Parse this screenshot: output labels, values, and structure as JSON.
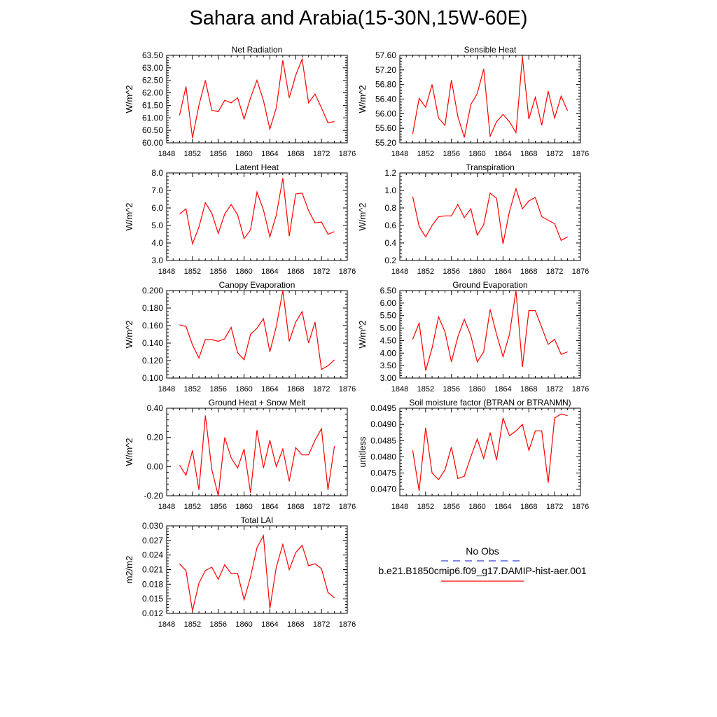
{
  "title": "Sahara and Arabia(15-30N,15W-60E)",
  "colors": {
    "series": "#ff0000",
    "obs": "#3b3bd6",
    "axis": "#000000"
  },
  "legend": {
    "obs_label": "No Obs",
    "model_label": "b.e21.B1850cmip6.f09_g17.DAMIP-hist-aer.001"
  },
  "chart_data": [
    {
      "type": "line",
      "title": "Net Radiation",
      "ylabel": "W/m^2",
      "xlim": [
        1848,
        1876
      ],
      "xticks": [
        "1848",
        "1852",
        "1856",
        "1860",
        "1864",
        "1868",
        "1872",
        "1876"
      ],
      "ylim": [
        60.0,
        63.5
      ],
      "yticks": [
        "60.00",
        "60.50",
        "61.00",
        "61.50",
        "62.00",
        "62.50",
        "63.00",
        "63.50"
      ],
      "x": [
        1850,
        1851,
        1852,
        1853,
        1854,
        1855,
        1856,
        1857,
        1858,
        1859,
        1860,
        1861,
        1862,
        1863,
        1864,
        1865,
        1866,
        1867,
        1868,
        1869,
        1870,
        1871,
        1872,
        1873,
        1874
      ],
      "values": [
        61.1,
        62.25,
        60.2,
        61.5,
        62.5,
        61.3,
        61.25,
        61.7,
        61.6,
        61.8,
        60.95,
        61.8,
        62.5,
        61.7,
        60.55,
        61.4,
        63.3,
        61.8,
        62.7,
        63.35,
        61.6,
        61.95,
        61.4,
        60.8,
        60.85
      ]
    },
    {
      "type": "line",
      "title": "Sensible Heat",
      "ylabel": "W/m^2",
      "xlim": [
        1848,
        1876
      ],
      "xticks": [
        "1848",
        "1852",
        "1856",
        "1860",
        "1864",
        "1868",
        "1872",
        "1876"
      ],
      "ylim": [
        55.2,
        57.6
      ],
      "yticks": [
        "55.20",
        "55.60",
        "56.00",
        "56.40",
        "56.80",
        "57.20",
        "57.60"
      ],
      "x": [
        1850,
        1851,
        1852,
        1853,
        1854,
        1855,
        1856,
        1857,
        1858,
        1859,
        1860,
        1861,
        1862,
        1863,
        1864,
        1865,
        1866,
        1867,
        1868,
        1869,
        1870,
        1871,
        1872,
        1873,
        1874
      ],
      "values": [
        55.45,
        56.42,
        56.18,
        56.8,
        55.88,
        55.68,
        56.92,
        55.92,
        55.35,
        56.25,
        56.55,
        57.23,
        55.38,
        55.78,
        55.98,
        55.78,
        55.48,
        57.55,
        55.85,
        56.45,
        55.68,
        56.62,
        55.88,
        56.48,
        56.08
      ]
    },
    {
      "type": "line",
      "title": "Latent Heat",
      "ylabel": "W/m^2",
      "xlim": [
        1848,
        1876
      ],
      "xticks": [
        "1848",
        "1852",
        "1856",
        "1860",
        "1864",
        "1868",
        "1872",
        "1876"
      ],
      "ylim": [
        3.0,
        8.0
      ],
      "yticks": [
        "3.0",
        "4.0",
        "5.0",
        "6.0",
        "7.0",
        "8.0"
      ],
      "x": [
        1850,
        1851,
        1852,
        1853,
        1854,
        1855,
        1856,
        1857,
        1858,
        1859,
        1860,
        1861,
        1862,
        1863,
        1864,
        1865,
        1866,
        1867,
        1868,
        1869,
        1870,
        1871,
        1872,
        1873,
        1874
      ],
      "values": [
        5.65,
        5.95,
        3.95,
        4.9,
        6.3,
        5.7,
        4.55,
        5.65,
        6.2,
        5.6,
        4.25,
        4.75,
        6.9,
        5.9,
        4.35,
        5.6,
        7.7,
        4.4,
        6.8,
        6.85,
        5.85,
        5.15,
        5.2,
        4.5,
        4.65
      ]
    },
    {
      "type": "line",
      "title": "Transpiration",
      "ylabel": "W/m^2",
      "xlim": [
        1848,
        1876
      ],
      "xticks": [
        "1848",
        "1852",
        "1856",
        "1860",
        "1864",
        "1868",
        "1872",
        "1876"
      ],
      "ylim": [
        0.2,
        1.2
      ],
      "yticks": [
        "0.2",
        "0.4",
        "0.6",
        "0.8",
        "1.0",
        "1.2"
      ],
      "x": [
        1850,
        1851,
        1852,
        1853,
        1854,
        1855,
        1856,
        1857,
        1858,
        1859,
        1860,
        1861,
        1862,
        1863,
        1864,
        1865,
        1866,
        1867,
        1868,
        1869,
        1870,
        1872,
        1873,
        1874
      ],
      "values": [
        0.93,
        0.59,
        0.47,
        0.6,
        0.7,
        0.71,
        0.71,
        0.84,
        0.69,
        0.79,
        0.49,
        0.61,
        0.97,
        0.91,
        0.39,
        0.76,
        1.02,
        0.79,
        0.88,
        0.92,
        0.7,
        0.62,
        0.43,
        0.47
      ]
    },
    {
      "type": "line",
      "title": "Canopy Evaporation",
      "ylabel": "W/m^2",
      "xlim": [
        1848,
        1876
      ],
      "xticks": [
        "1848",
        "1852",
        "1856",
        "1860",
        "1864",
        "1868",
        "1872",
        "1876"
      ],
      "ylim": [
        0.1,
        0.2
      ],
      "yticks": [
        "0.100",
        "0.120",
        "0.140",
        "0.160",
        "0.180",
        "0.200"
      ],
      "x": [
        1850,
        1851,
        1852,
        1853,
        1854,
        1855,
        1856,
        1857,
        1858,
        1859,
        1860,
        1861,
        1862,
        1863,
        1864,
        1865,
        1866,
        1867,
        1868,
        1869,
        1870,
        1871,
        1872,
        1873,
        1874
      ],
      "values": [
        0.161,
        0.159,
        0.138,
        0.123,
        0.144,
        0.144,
        0.142,
        0.145,
        0.158,
        0.129,
        0.121,
        0.15,
        0.157,
        0.168,
        0.13,
        0.159,
        0.2,
        0.142,
        0.164,
        0.176,
        0.14,
        0.164,
        0.11,
        0.114,
        0.121
      ]
    },
    {
      "type": "line",
      "title": "Ground Evaporation",
      "ylabel": "W/m^2",
      "xlim": [
        1848,
        1876
      ],
      "xticks": [
        "1848",
        "1852",
        "1856",
        "1860",
        "1864",
        "1868",
        "1872",
        "1876"
      ],
      "ylim": [
        3.0,
        6.5
      ],
      "yticks": [
        "3.00",
        "3.50",
        "4.00",
        "4.50",
        "5.00",
        "5.50",
        "6.00",
        "6.50"
      ],
      "x": [
        1850,
        1851,
        1852,
        1853,
        1854,
        1855,
        1856,
        1857,
        1858,
        1859,
        1860,
        1861,
        1862,
        1863,
        1864,
        1865,
        1866,
        1867,
        1868,
        1869,
        1871,
        1872,
        1873,
        1874
      ],
      "values": [
        4.55,
        5.2,
        3.3,
        4.2,
        5.45,
        4.85,
        3.65,
        4.65,
        5.35,
        4.7,
        3.65,
        4.05,
        5.75,
        4.75,
        3.85,
        4.75,
        6.5,
        3.45,
        5.7,
        5.7,
        4.35,
        4.55,
        3.95,
        4.05
      ]
    },
    {
      "type": "line",
      "title": "Ground Heat + Snow Melt",
      "ylabel": "W/m^2",
      "xlim": [
        1848,
        1876
      ],
      "xticks": [
        "1848",
        "1852",
        "1856",
        "1860",
        "1864",
        "1868",
        "1872",
        "1876"
      ],
      "ylim": [
        -0.2,
        0.4
      ],
      "yticks": [
        "-0.20",
        "0.00",
        "0.20",
        "0.40"
      ],
      "x": [
        1850,
        1851,
        1852,
        1853,
        1854,
        1855,
        1856,
        1857,
        1858,
        1859,
        1860,
        1861,
        1862,
        1863,
        1864,
        1865,
        1866,
        1867,
        1868,
        1869,
        1870,
        1871,
        1872,
        1873,
        1874
      ],
      "values": [
        0.01,
        -0.06,
        0.11,
        -0.16,
        0.35,
        -0.02,
        -0.2,
        0.2,
        0.06,
        -0.01,
        0.12,
        -0.18,
        0.25,
        -0.01,
        0.18,
        0.0,
        0.12,
        -0.1,
        0.13,
        0.08,
        0.08,
        0.18,
        0.26,
        -0.16,
        0.14
      ]
    },
    {
      "type": "line",
      "title": "Soil moisture factor (BTRAN or BTRANMN)",
      "ylabel": "unitless",
      "xlim": [
        1848,
        1876
      ],
      "xticks": [
        "1848",
        "1852",
        "1856",
        "1860",
        "1864",
        "1868",
        "1872",
        "1876"
      ],
      "ylim": [
        0.0468,
        0.0495
      ],
      "yticks": [
        "0.0470",
        "0.0475",
        "0.0480",
        "0.0485",
        "0.0490",
        "0.0495"
      ],
      "x": [
        1850,
        1851,
        1852,
        1853,
        1854,
        1855,
        1856,
        1857,
        1858,
        1859,
        1860,
        1861,
        1862,
        1863,
        1864,
        1865,
        1866,
        1867,
        1868,
        1869,
        1870,
        1871,
        1872,
        1873,
        1874
      ],
      "values": [
        0.0482,
        0.04695,
        0.0489,
        0.0475,
        0.0473,
        0.0476,
        0.0483,
        0.04733,
        0.0474,
        0.048,
        0.04855,
        0.04795,
        0.04875,
        0.0479,
        0.0492,
        0.04865,
        0.0488,
        0.049,
        0.0482,
        0.0488,
        0.0488,
        0.0472,
        0.0492,
        0.04932,
        0.04927
      ]
    },
    {
      "type": "line",
      "title": "Total LAI",
      "ylabel": "m2/m2",
      "xlim": [
        1848,
        1876
      ],
      "xticks": [
        "1848",
        "1852",
        "1856",
        "1860",
        "1864",
        "1868",
        "1872",
        "1876"
      ],
      "ylim": [
        0.012,
        0.03
      ],
      "yticks": [
        "0.012",
        "0.015",
        "0.018",
        "0.021",
        "0.024",
        "0.027",
        "0.030"
      ],
      "x": [
        1850,
        1851,
        1852,
        1853,
        1854,
        1855,
        1856,
        1857,
        1858,
        1859,
        1860,
        1861,
        1862,
        1863,
        1864,
        1865,
        1866,
        1867,
        1868,
        1869,
        1870,
        1871,
        1872,
        1873,
        1874
      ],
      "values": [
        0.0222,
        0.0208,
        0.0125,
        0.0182,
        0.0208,
        0.0215,
        0.019,
        0.022,
        0.0202,
        0.0202,
        0.0148,
        0.0195,
        0.0255,
        0.028,
        0.013,
        0.0215,
        0.0262,
        0.021,
        0.0245,
        0.026,
        0.0218,
        0.0222,
        0.0212,
        0.0163,
        0.0152
      ]
    }
  ]
}
